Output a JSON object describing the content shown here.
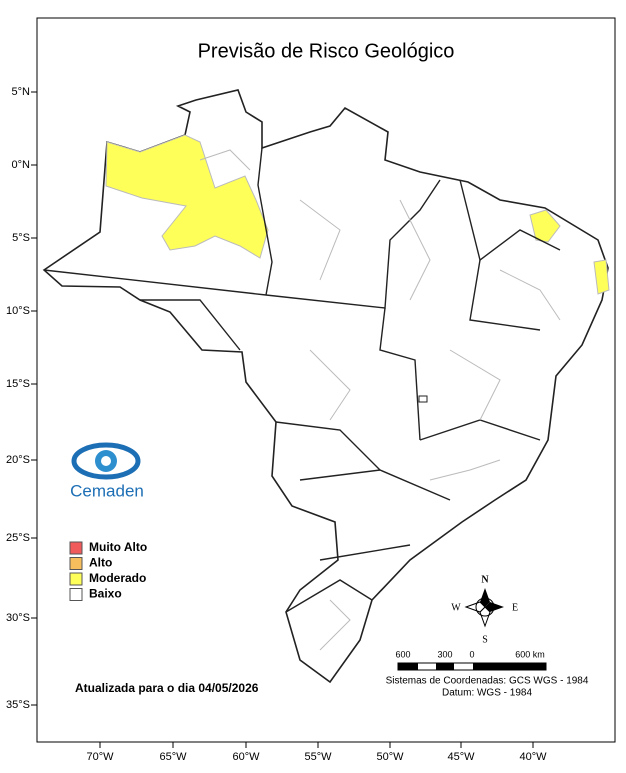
{
  "title": "Previsão de Risco Geológico",
  "lat_labels": [
    "5°N",
    "0°N",
    "5°S",
    "10°S",
    "15°S",
    "20°S",
    "25°S",
    "30°S",
    "35°S"
  ],
  "lon_labels": [
    "70°W",
    "65°W",
    "60°W",
    "55°W",
    "50°W",
    "45°W",
    "40°W"
  ],
  "logo": "Cemaden",
  "legend": [
    {
      "label": "Muito Alto",
      "color": "#f05a5a"
    },
    {
      "label": "Alto",
      "color": "#f7be5e"
    },
    {
      "label": "Moderado",
      "color": "#ffff5a"
    },
    {
      "label": "Baixo",
      "color": "#ffffff"
    }
  ],
  "updated": "Atualizada para o dia 04/05/2026",
  "compass": {
    "north": "N",
    "south": "S",
    "west": "W",
    "east": "E"
  },
  "scale_labels": [
    "600",
    "300",
    "0",
    "600 km"
  ],
  "coordinate_system": [
    "Sistemas de Coordenadas: GCS WGS - 1984",
    "Datum: WGS - 1984"
  ]
}
